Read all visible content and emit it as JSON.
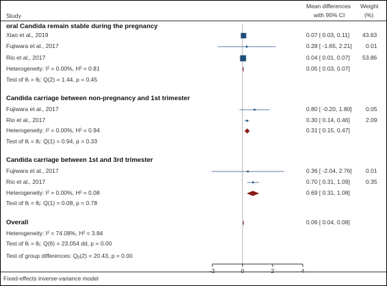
{
  "header": {
    "study": "Study",
    "effect_line1": "Mean differences",
    "effect_line2": "with 95% CI",
    "weight_line1": "Weight",
    "weight_line2": "(%)"
  },
  "colors": {
    "study_marker": "#1f4e79",
    "study_ci": "#5b7fa6",
    "summary_diamond": "#8b1a1a",
    "null_line": "#b0b0b0"
  },
  "chart_data": {
    "type": "forest",
    "xlim": [
      -2,
      4
    ],
    "x_ticks": [
      -2,
      0,
      2,
      4
    ],
    "x_tick_labels": [
      "-2",
      "0",
      "2",
      "4"
    ],
    "null_value": 0,
    "groups": [
      {
        "title": "oral Candida remain stable during the pregnancy",
        "studies": [
          {
            "name": "Xiao et al., 2019",
            "est": 0.07,
            "lo": 0.03,
            "hi": 0.11,
            "ci_text": "0.07 [  0.03,  0.11]",
            "weight": "43.63",
            "w": 43.63
          },
          {
            "name": "Fujiwara et al., 2017",
            "est": 0.28,
            "lo": -1.65,
            "hi": 2.21,
            "ci_text": "0.28 [ -1.65,  2.21]",
            "weight": "0.01",
            "w": 0.01
          },
          {
            "name": "Rio et al., 2017",
            "est": 0.04,
            "lo": 0.01,
            "hi": 0.07,
            "ci_text": "0.04 [  0.01,  0.07]",
            "weight": "53.86",
            "w": 53.86
          }
        ],
        "heterogeneity": {
          "text": "Heterogeneity: I² = 0.00%, H² = 0.81",
          "est": 0.05,
          "lo": 0.03,
          "hi": 0.07,
          "ci_text": "0.05 [  0.03,  0.07]"
        },
        "test": "Test of θᵢ = θⱼ: Q(2) = 1.44, p = 0.45"
      },
      {
        "title": "Candida carriage between non-pregnancy and 1st trimester",
        "studies": [
          {
            "name": "Fujiwara et al., 2017",
            "est": 0.8,
            "lo": -0.2,
            "hi": 1.8,
            "ci_text": "0.80 [ -0.20,  1.80]",
            "weight": "0.05",
            "w": 0.05
          },
          {
            "name": "Rio et al., 2017",
            "est": 0.3,
            "lo": 0.14,
            "hi": 0.46,
            "ci_text": "0.30 [  0.14,  0.46]",
            "weight": "2.09",
            "w": 2.09
          }
        ],
        "heterogeneity": {
          "text": "Heterogeneity: I² = 0.00%, H² = 0.94",
          "est": 0.31,
          "lo": 0.15,
          "hi": 0.47,
          "ci_text": "0.31 [  0.15,  0.47]"
        },
        "test": "Test of θᵢ = θⱼ: Q(1) = 0.94, p = 0.33"
      },
      {
        "title": "Candida carriage between 1st and 3rd trimester",
        "studies": [
          {
            "name": "Fujiwara et al., 2017",
            "est": 0.36,
            "lo": -2.04,
            "hi": 2.76,
            "ci_text": "0.36 [ -2.04,  2.76]",
            "weight": "0.01",
            "w": 0.01
          },
          {
            "name": "Rio et al., 2017",
            "est": 0.7,
            "lo": 0.31,
            "hi": 1.09,
            "ci_text": "0.70 [  0.31,  1.09]",
            "weight": "0.35",
            "w": 0.35
          }
        ],
        "heterogeneity": {
          "text": "Heterogeneity: I² = 0.00%, H² = 0.08",
          "est": 0.69,
          "lo": 0.31,
          "hi": 1.08,
          "ci_text": "0.69 [  0.31,  1.08]"
        },
        "test": "Test of θᵢ = θⱼ: Q(1) = 0.08, p = 0.78"
      }
    ],
    "overall": {
      "title": "Overall",
      "est": 0.06,
      "lo": 0.04,
      "hi": 0.08,
      "ci_text": "0.06 [  0.04,  0.08]",
      "heterogeneity": "Heterogeneity: I² = 74.08%, H² = 3.84",
      "test": "Test of θᵢ = θⱼ: Q(6) = 23.054 dd, p = 0.00"
    },
    "group_test": "Test of group differences: Qᵦ(2) = 20.43, p = 0.00"
  },
  "footer": "Fixed-effects inverse-variance model"
}
